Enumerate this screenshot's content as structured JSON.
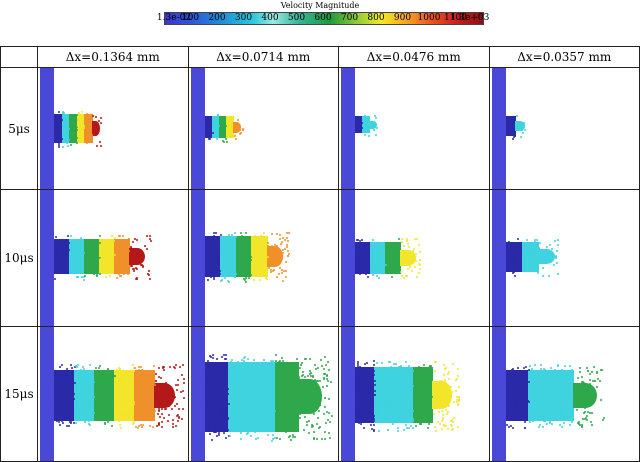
{
  "colorbar": {
    "title": "Velocity Magnitude",
    "ticks": [
      "1.3e-02",
      "100",
      "200",
      "300",
      "400",
      "500",
      "600",
      "700",
      "800",
      "900",
      "1000",
      "1100",
      "1.3e+03"
    ]
  },
  "columns": [
    {
      "label": "Δx=0.1364 mm"
    },
    {
      "label": "Δx=0.0714 mm"
    },
    {
      "label": "Δx=0.0476 mm"
    },
    {
      "label": "Δx=0.0357 mm"
    }
  ],
  "rows": [
    {
      "label": "5μs"
    },
    {
      "label": "10μs"
    },
    {
      "label": "15μs"
    }
  ],
  "colors": {
    "wall": "#4a48d6",
    "low": "#2a2aa8",
    "cyan": "#3fd3e0",
    "green": "#2ea84a",
    "yellow": "#f2e52a",
    "orange": "#f0902a",
    "red": "#b41818"
  }
}
